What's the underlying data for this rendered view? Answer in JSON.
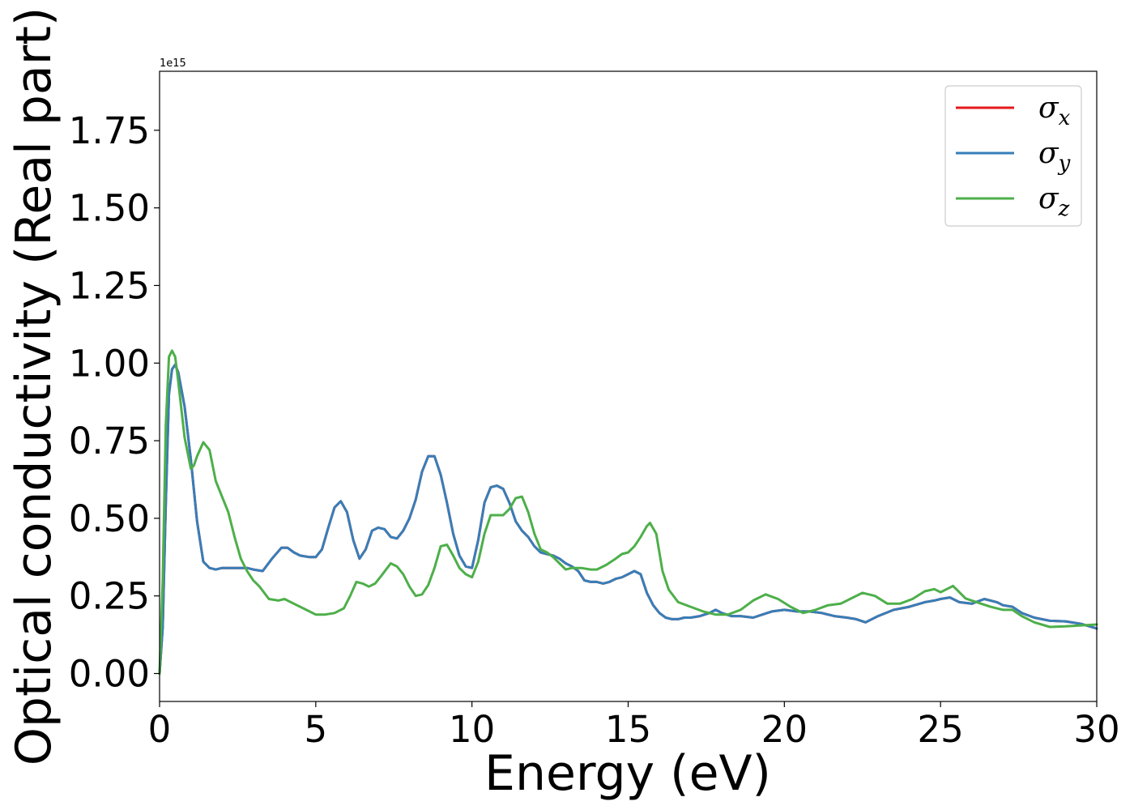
{
  "chart_data": {
    "type": "line",
    "title": "",
    "xlabel": "Energy (eV)",
    "ylabel": "Optical conductivity (Real part)",
    "offset_text": "1e15",
    "xlim": [
      0,
      30
    ],
    "ylim": [
      -0.09,
      1.94
    ],
    "x_ticks": [
      0,
      5,
      10,
      15,
      20,
      25,
      30
    ],
    "x_tick_labels": [
      "0",
      "5",
      "10",
      "15",
      "20",
      "25",
      "30"
    ],
    "y_ticks": [
      0.0,
      0.25,
      0.5,
      0.75,
      1.0,
      1.25,
      1.5,
      1.75
    ],
    "y_tick_labels": [
      "0.00",
      "0.25",
      "0.50",
      "0.75",
      "1.00",
      "1.25",
      "1.50",
      "1.75"
    ],
    "grid": false,
    "legend_position": "top-right",
    "colors": {
      "sigma_x": "#e41a1c",
      "sigma_y": "#377eb8",
      "sigma_z": "#4daf4a"
    },
    "series": [
      {
        "name": "σx",
        "label_base": "σ",
        "label_sub": "x",
        "color": "#e41a1c",
        "x": [
          0,
          0.1,
          0.2,
          0.3,
          0.4,
          0.5,
          0.6,
          0.8,
          1.0,
          1.2,
          1.4,
          1.6,
          1.8,
          2.0,
          2.2,
          2.5,
          2.8,
          3.0,
          3.3,
          3.6,
          3.9,
          4.1,
          4.3,
          4.5,
          4.8,
          5.0,
          5.2,
          5.4,
          5.6,
          5.8,
          6.0,
          6.2,
          6.4,
          6.6,
          6.8,
          7.0,
          7.2,
          7.4,
          7.6,
          7.8,
          8.0,
          8.2,
          8.4,
          8.6,
          8.8,
          9.0,
          9.2,
          9.4,
          9.6,
          9.8,
          10.0,
          10.2,
          10.4,
          10.6,
          10.8,
          11.0,
          11.2,
          11.4,
          11.6,
          11.8,
          12.0,
          12.2,
          12.4,
          12.6,
          12.8,
          13.0,
          13.2,
          13.4,
          13.6,
          13.8,
          14.0,
          14.2,
          14.4,
          14.6,
          14.8,
          15.0,
          15.2,
          15.4,
          15.6,
          15.8,
          16.0,
          16.2,
          16.4,
          16.6,
          16.8,
          17.0,
          17.3,
          17.6,
          17.8,
          18.0,
          18.3,
          18.6,
          19.0,
          19.3,
          19.6,
          20.0,
          20.4,
          20.8,
          21.2,
          21.6,
          22.0,
          22.3,
          22.6,
          23.0,
          23.5,
          24.0,
          24.5,
          24.8,
          25.0,
          25.3,
          25.6,
          26.0,
          26.4,
          26.8,
          27.0,
          27.3,
          27.6,
          28.0,
          28.5,
          29.0,
          29.5,
          30.0
        ],
        "y": [
          0.0,
          0.15,
          0.55,
          0.9,
          0.98,
          0.995,
          0.97,
          0.86,
          0.69,
          0.49,
          0.36,
          0.34,
          0.335,
          0.34,
          0.34,
          0.34,
          0.34,
          0.335,
          0.33,
          0.37,
          0.405,
          0.405,
          0.39,
          0.38,
          0.375,
          0.375,
          0.4,
          0.47,
          0.535,
          0.555,
          0.52,
          0.43,
          0.37,
          0.4,
          0.46,
          0.47,
          0.465,
          0.44,
          0.435,
          0.46,
          0.5,
          0.56,
          0.65,
          0.7,
          0.7,
          0.64,
          0.55,
          0.45,
          0.38,
          0.345,
          0.34,
          0.43,
          0.55,
          0.6,
          0.605,
          0.595,
          0.55,
          0.49,
          0.46,
          0.44,
          0.41,
          0.39,
          0.385,
          0.38,
          0.37,
          0.355,
          0.345,
          0.33,
          0.3,
          0.295,
          0.295,
          0.29,
          0.295,
          0.305,
          0.31,
          0.32,
          0.33,
          0.32,
          0.26,
          0.22,
          0.195,
          0.18,
          0.175,
          0.175,
          0.18,
          0.18,
          0.185,
          0.195,
          0.205,
          0.195,
          0.185,
          0.185,
          0.18,
          0.19,
          0.2,
          0.205,
          0.2,
          0.2,
          0.195,
          0.185,
          0.18,
          0.175,
          0.165,
          0.185,
          0.205,
          0.215,
          0.23,
          0.235,
          0.24,
          0.245,
          0.23,
          0.225,
          0.24,
          0.23,
          0.22,
          0.215,
          0.195,
          0.18,
          0.17,
          0.168,
          0.16,
          0.145
        ]
      },
      {
        "name": "σy",
        "label_base": "σ",
        "label_sub": "y",
        "color": "#377eb8",
        "x": [
          0,
          0.1,
          0.2,
          0.3,
          0.4,
          0.5,
          0.6,
          0.8,
          1.0,
          1.2,
          1.4,
          1.6,
          1.8,
          2.0,
          2.2,
          2.5,
          2.8,
          3.0,
          3.3,
          3.6,
          3.9,
          4.1,
          4.3,
          4.5,
          4.8,
          5.0,
          5.2,
          5.4,
          5.6,
          5.8,
          6.0,
          6.2,
          6.4,
          6.6,
          6.8,
          7.0,
          7.2,
          7.4,
          7.6,
          7.8,
          8.0,
          8.2,
          8.4,
          8.6,
          8.8,
          9.0,
          9.2,
          9.4,
          9.6,
          9.8,
          10.0,
          10.2,
          10.4,
          10.6,
          10.8,
          11.0,
          11.2,
          11.4,
          11.6,
          11.8,
          12.0,
          12.2,
          12.4,
          12.6,
          12.8,
          13.0,
          13.2,
          13.4,
          13.6,
          13.8,
          14.0,
          14.2,
          14.4,
          14.6,
          14.8,
          15.0,
          15.2,
          15.4,
          15.6,
          15.8,
          16.0,
          16.2,
          16.4,
          16.6,
          16.8,
          17.0,
          17.3,
          17.6,
          17.8,
          18.0,
          18.3,
          18.6,
          19.0,
          19.3,
          19.6,
          20.0,
          20.4,
          20.8,
          21.2,
          21.6,
          22.0,
          22.3,
          22.6,
          23.0,
          23.5,
          24.0,
          24.5,
          24.8,
          25.0,
          25.3,
          25.6,
          26.0,
          26.4,
          26.8,
          27.0,
          27.3,
          27.6,
          28.0,
          28.5,
          29.0,
          29.5,
          30.0
        ],
        "y": [
          0.0,
          0.15,
          0.55,
          0.9,
          0.98,
          0.995,
          0.97,
          0.86,
          0.69,
          0.49,
          0.36,
          0.34,
          0.335,
          0.34,
          0.34,
          0.34,
          0.34,
          0.335,
          0.33,
          0.37,
          0.405,
          0.405,
          0.39,
          0.38,
          0.375,
          0.375,
          0.4,
          0.47,
          0.535,
          0.555,
          0.52,
          0.43,
          0.37,
          0.4,
          0.46,
          0.47,
          0.465,
          0.44,
          0.435,
          0.46,
          0.5,
          0.56,
          0.65,
          0.7,
          0.7,
          0.64,
          0.55,
          0.45,
          0.38,
          0.345,
          0.34,
          0.43,
          0.55,
          0.6,
          0.605,
          0.595,
          0.55,
          0.49,
          0.46,
          0.44,
          0.41,
          0.39,
          0.385,
          0.38,
          0.37,
          0.355,
          0.345,
          0.33,
          0.3,
          0.295,
          0.295,
          0.29,
          0.295,
          0.305,
          0.31,
          0.32,
          0.33,
          0.32,
          0.26,
          0.22,
          0.195,
          0.18,
          0.175,
          0.175,
          0.18,
          0.18,
          0.185,
          0.195,
          0.205,
          0.195,
          0.185,
          0.185,
          0.18,
          0.19,
          0.2,
          0.205,
          0.2,
          0.2,
          0.195,
          0.185,
          0.18,
          0.175,
          0.165,
          0.185,
          0.205,
          0.215,
          0.23,
          0.235,
          0.24,
          0.245,
          0.23,
          0.225,
          0.24,
          0.23,
          0.22,
          0.215,
          0.195,
          0.18,
          0.17,
          0.168,
          0.16,
          0.145
        ]
      },
      {
        "name": "σz",
        "label_base": "σ",
        "label_sub": "z",
        "color": "#4daf4a",
        "x": [
          0,
          0.1,
          0.2,
          0.3,
          0.4,
          0.5,
          0.6,
          0.8,
          1.0,
          1.1,
          1.2,
          1.4,
          1.6,
          1.8,
          2.0,
          2.2,
          2.4,
          2.6,
          2.8,
          3.0,
          3.2,
          3.5,
          3.8,
          4.0,
          4.3,
          4.6,
          5.0,
          5.3,
          5.6,
          5.9,
          6.1,
          6.3,
          6.5,
          6.7,
          6.9,
          7.1,
          7.4,
          7.6,
          7.8,
          8.0,
          8.2,
          8.4,
          8.6,
          8.8,
          9.0,
          9.2,
          9.4,
          9.6,
          9.8,
          10.0,
          10.2,
          10.4,
          10.6,
          10.8,
          11.0,
          11.2,
          11.4,
          11.6,
          11.8,
          12.0,
          12.2,
          12.4,
          12.6,
          12.8,
          13.0,
          13.2,
          13.5,
          13.8,
          14.0,
          14.3,
          14.6,
          14.8,
          15.0,
          15.2,
          15.4,
          15.6,
          15.7,
          15.9,
          16.1,
          16.3,
          16.6,
          17.0,
          17.4,
          17.8,
          18.2,
          18.6,
          19.0,
          19.4,
          19.8,
          20.2,
          20.6,
          21.0,
          21.4,
          21.8,
          22.2,
          22.5,
          22.9,
          23.3,
          23.7,
          24.1,
          24.5,
          24.8,
          25.0,
          25.2,
          25.4,
          25.6,
          25.8,
          26.0,
          26.3,
          26.6,
          27.0,
          27.3,
          27.6,
          28.0,
          28.5,
          29.0,
          29.5,
          30.0
        ],
        "y": [
          0.0,
          0.3,
          0.8,
          1.02,
          1.04,
          1.02,
          0.94,
          0.76,
          0.66,
          0.67,
          0.7,
          0.745,
          0.72,
          0.62,
          0.57,
          0.52,
          0.44,
          0.37,
          0.33,
          0.3,
          0.28,
          0.24,
          0.235,
          0.24,
          0.225,
          0.21,
          0.19,
          0.19,
          0.195,
          0.21,
          0.25,
          0.295,
          0.29,
          0.28,
          0.29,
          0.315,
          0.355,
          0.345,
          0.32,
          0.28,
          0.25,
          0.255,
          0.285,
          0.34,
          0.41,
          0.415,
          0.38,
          0.34,
          0.32,
          0.31,
          0.36,
          0.45,
          0.51,
          0.51,
          0.51,
          0.53,
          0.565,
          0.57,
          0.52,
          0.45,
          0.4,
          0.39,
          0.375,
          0.355,
          0.335,
          0.34,
          0.34,
          0.335,
          0.335,
          0.35,
          0.37,
          0.385,
          0.39,
          0.41,
          0.44,
          0.475,
          0.485,
          0.45,
          0.33,
          0.27,
          0.23,
          0.215,
          0.2,
          0.19,
          0.19,
          0.205,
          0.235,
          0.255,
          0.24,
          0.215,
          0.195,
          0.205,
          0.22,
          0.225,
          0.245,
          0.26,
          0.25,
          0.225,
          0.225,
          0.24,
          0.265,
          0.272,
          0.262,
          0.272,
          0.282,
          0.262,
          0.242,
          0.235,
          0.225,
          0.215,
          0.205,
          0.205,
          0.185,
          0.165,
          0.15,
          0.152,
          0.155,
          0.158
        ]
      }
    ]
  }
}
